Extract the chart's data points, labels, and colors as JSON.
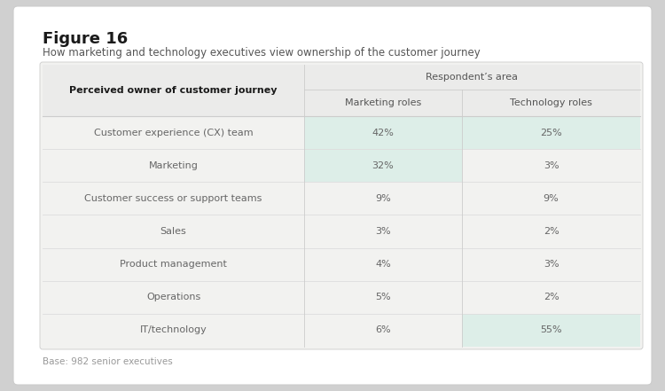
{
  "figure_title": "Figure 16",
  "subtitle": "How marketing and technology executives view ownership of the customer journey",
  "footnote": "Base: 982 senior executives",
  "header_col1": "Perceived owner of customer journey",
  "header_group": "Respondent’s area",
  "header_col2": "Marketing roles",
  "header_col3": "Technology roles",
  "rows": [
    {
      "label": "Customer experience (CX) team",
      "marketing": "42%",
      "technology": "25%",
      "mkt_highlight": true,
      "tech_highlight": true
    },
    {
      "label": "Marketing",
      "marketing": "32%",
      "technology": "3%",
      "mkt_highlight": true,
      "tech_highlight": false
    },
    {
      "label": "Customer success or support teams",
      "marketing": "9%",
      "technology": "9%",
      "mkt_highlight": false,
      "tech_highlight": false
    },
    {
      "label": "Sales",
      "marketing": "3%",
      "technology": "2%",
      "mkt_highlight": false,
      "tech_highlight": false
    },
    {
      "label": "Product management",
      "marketing": "4%",
      "technology": "3%",
      "mkt_highlight": false,
      "tech_highlight": false
    },
    {
      "label": "Operations",
      "marketing": "5%",
      "technology": "2%",
      "mkt_highlight": false,
      "tech_highlight": false
    },
    {
      "label": "IT/technology",
      "marketing": "6%",
      "technology": "55%",
      "mkt_highlight": false,
      "tech_highlight": true
    }
  ],
  "outer_bg": "#d0d0d0",
  "card_bg": "#ffffff",
  "card_edge": "#cccccc",
  "table_bg": "#f2f2f0",
  "highlight_color": "#ddeee8",
  "row_line_color": "#dddddd",
  "divider_color": "#cccccc",
  "title_fontsize": 13,
  "subtitle_fontsize": 8.5,
  "footnote_fontsize": 7.5,
  "header_fontsize": 8,
  "cell_fontsize": 8,
  "text_color": "#1a1a1a",
  "header_text_color": "#555555",
  "cell_text_color": "#666666"
}
